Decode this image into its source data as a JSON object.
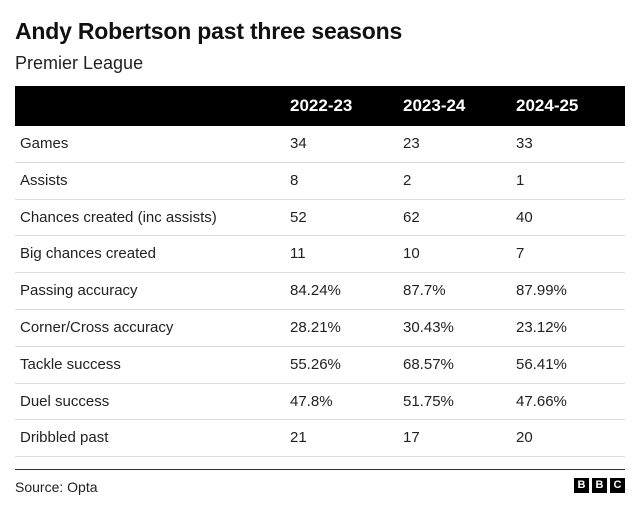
{
  "title": "Andy Robertson past three seasons",
  "subtitle": "Premier League",
  "source": "Source: Opta",
  "logo": [
    "B",
    "B",
    "C"
  ],
  "chart_data": {
    "type": "table",
    "columns": [
      "",
      "2022-23",
      "2023-24",
      "2024-25"
    ],
    "rows": [
      {
        "label": "Games",
        "values": [
          "34",
          "23",
          "33"
        ]
      },
      {
        "label": "Assists",
        "values": [
          "8",
          "2",
          "1"
        ]
      },
      {
        "label": "Chances created (inc assists)",
        "values": [
          "52",
          "62",
          "40"
        ]
      },
      {
        "label": "Big chances created",
        "values": [
          "11",
          "10",
          "7"
        ]
      },
      {
        "label": "Passing accuracy",
        "values": [
          "84.24%",
          "87.7%",
          "87.99%"
        ]
      },
      {
        "label": "Corner/Cross accuracy",
        "values": [
          "28.21%",
          "30.43%",
          "23.12%"
        ]
      },
      {
        "label": "Tackle success",
        "values": [
          "55.26%",
          "68.57%",
          "56.41%"
        ]
      },
      {
        "label": "Duel success",
        "values": [
          "47.8%",
          "51.75%",
          "47.66%"
        ]
      },
      {
        "label": "Dribbled past",
        "values": [
          "21",
          "17",
          "20"
        ]
      }
    ]
  }
}
